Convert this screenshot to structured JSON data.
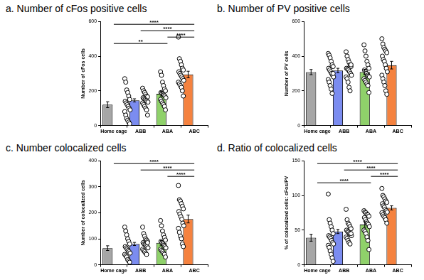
{
  "chart_data": [
    {
      "type": "bar",
      "title": "a. Number of cFos positive cells",
      "y_label": "Number of cFos cells",
      "categories": [
        "Home cage",
        "ABB",
        "ABA",
        "ABC"
      ],
      "values": [
        120,
        145,
        183,
        294
      ],
      "errors": [
        17,
        9,
        13,
        19
      ],
      "points": [
        [
          270,
          250,
          205,
          190,
          170,
          150,
          140,
          130,
          120,
          110,
          100,
          90,
          80,
          60,
          40,
          30,
          20,
          10
        ],
        [
          215,
          200,
          190,
          180,
          170,
          165,
          160,
          155,
          150,
          145,
          140,
          135,
          130,
          120,
          110,
          100,
          90,
          60
        ],
        [
          310,
          290,
          250,
          230,
          210,
          200,
          190,
          185,
          180,
          175,
          170,
          160,
          150,
          140,
          130,
          120,
          110,
          90
        ],
        [
          510,
          385,
          370,
          350,
          330,
          320,
          310,
          300,
          290,
          280,
          270,
          260,
          250,
          240,
          230,
          220,
          200,
          170
        ]
      ],
      "colors": [
        "#a6a6a6",
        "#7b8cf0",
        "#8fd16a",
        "#f5823f"
      ],
      "ylim": [
        0,
        600
      ],
      "yticks": [
        0,
        200,
        400,
        600
      ],
      "grid": false,
      "significance": [
        {
          "from": "Home cage",
          "to": "ABC",
          "label": "****"
        },
        {
          "from": "ABB",
          "to": "ABC",
          "label": "****"
        },
        {
          "from": "ABA",
          "to": "ABC",
          "label": "****"
        },
        {
          "from": "Home cage",
          "to": "ABA",
          "label": "**"
        }
      ]
    },
    {
      "type": "bar",
      "title": "b. Number of PV positive cells",
      "y_label": "Number of PV cells",
      "categories": [
        "Home cage",
        "ABB",
        "ABA",
        "ABC"
      ],
      "values": [
        308,
        317,
        309,
        348
      ],
      "errors": [
        15,
        13,
        15,
        22
      ],
      "points": [
        [
          415,
          405,
          390,
          370,
          350,
          340,
          330,
          320,
          310,
          300,
          290,
          280,
          265,
          250,
          230,
          210,
          185,
          300
        ],
        [
          425,
          400,
          380,
          365,
          350,
          340,
          330,
          325,
          320,
          310,
          300,
          290,
          280,
          270,
          250,
          220,
          200,
          350
        ],
        [
          465,
          430,
          400,
          370,
          350,
          330,
          320,
          310,
          300,
          290,
          285,
          280,
          270,
          260,
          250,
          240,
          230,
          190
        ],
        [
          500,
          470,
          450,
          440,
          430,
          420,
          400,
          380,
          370,
          350,
          330,
          310,
          290,
          270,
          250,
          230,
          200,
          180
        ]
      ],
      "colors": [
        "#a6a6a6",
        "#7b8cf0",
        "#8fd16a",
        "#f5823f"
      ],
      "ylim": [
        0,
        600
      ],
      "yticks": [
        0,
        200,
        400,
        600
      ],
      "grid": false,
      "significance": []
    },
    {
      "type": "bar",
      "title": "c. Number colocalized cells",
      "y_label": "Number of colocalized cells",
      "categories": [
        "Home cage",
        "ABB",
        "ABA",
        "ABC"
      ],
      "values": [
        64,
        80,
        84,
        176
      ],
      "errors": [
        9,
        6,
        9,
        15
      ],
      "points": [
        [
          145,
          130,
          115,
          100,
          90,
          80,
          70,
          65,
          60,
          55,
          50,
          45,
          40,
          35,
          30,
          20,
          15,
          10
        ],
        [
          145,
          120,
          110,
          100,
          95,
          90,
          85,
          80,
          78,
          75,
          70,
          65,
          60,
          55,
          50,
          45,
          40,
          85
        ],
        [
          170,
          150,
          130,
          115,
          105,
          95,
          90,
          85,
          80,
          75,
          70,
          65,
          60,
          55,
          50,
          45,
          40,
          30
        ],
        [
          305,
          250,
          245,
          235,
          225,
          215,
          205,
          195,
          185,
          175,
          160,
          150,
          140,
          125,
          110,
          100,
          80,
          70
        ]
      ],
      "colors": [
        "#a6a6a6",
        "#7b8cf0",
        "#8fd16a",
        "#f5823f"
      ],
      "ylim": [
        0,
        400
      ],
      "yticks": [
        0,
        100,
        200,
        300,
        400
      ],
      "grid": false,
      "significance": [
        {
          "from": "Home cage",
          "to": "ABC",
          "label": "****"
        },
        {
          "from": "ABB",
          "to": "ABC",
          "label": "****"
        },
        {
          "from": "ABA",
          "to": "ABC",
          "label": "****"
        }
      ]
    },
    {
      "type": "bar",
      "title": "d. Ratio of colocalized cells",
      "y_label": "% of colocalized cells: cFos/PV",
      "categories": [
        "Home cage",
        "ABB",
        "ABA",
        "ABC"
      ],
      "values": [
        39,
        48,
        58,
        82
      ],
      "errors": [
        5,
        3,
        4,
        3
      ],
      "points": [
        [
          102,
          65,
          60,
          55,
          50,
          45,
          42,
          40,
          38,
          35,
          32,
          30,
          28,
          25,
          20,
          15,
          10,
          5
        ],
        [
          80,
          65,
          60,
          58,
          55,
          52,
          50,
          48,
          47,
          45,
          44,
          42,
          40,
          38,
          35,
          32,
          30,
          45
        ],
        [
          78,
          76,
          75,
          73,
          72,
          70,
          68,
          65,
          62,
          60,
          58,
          55,
          50,
          48,
          45,
          40,
          35,
          22
        ],
        [
          110,
          100,
          98,
          95,
          92,
          90,
          88,
          85,
          83,
          80,
          78,
          76,
          75,
          72,
          70,
          68,
          65,
          60
        ]
      ],
      "colors": [
        "#a6a6a6",
        "#7b8cf0",
        "#8fd16a",
        "#f5823f"
      ],
      "ylim": [
        0,
        150
      ],
      "yticks": [
        0,
        50,
        100,
        150
      ],
      "grid": false,
      "significance": [
        {
          "from": "Home cage",
          "to": "ABC",
          "label": "****"
        },
        {
          "from": "ABB",
          "to": "ABC",
          "label": "****"
        },
        {
          "from": "ABA",
          "to": "ABC",
          "label": "****"
        },
        {
          "from": "Home cage",
          "to": "ABA",
          "label": "****"
        }
      ]
    }
  ]
}
